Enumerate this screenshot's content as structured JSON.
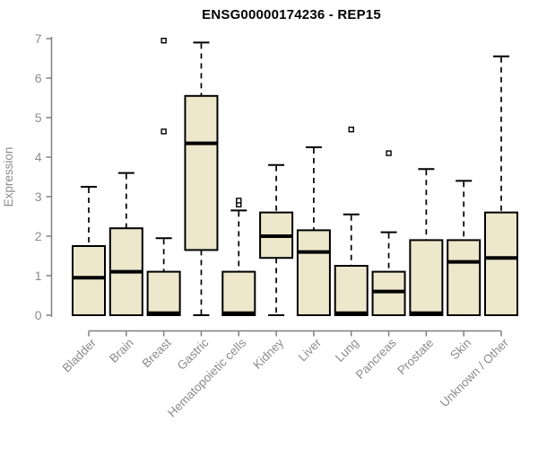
{
  "chart_data": {
    "type": "boxplot",
    "title": "ENSG00000174236 - REP15",
    "ylabel": "Expression",
    "xlabel": "",
    "ylim": [
      0,
      7
    ],
    "yticks": [
      0,
      1,
      2,
      3,
      4,
      5,
      6,
      7
    ],
    "grid": false,
    "legend": "none",
    "categories": [
      "Bladder",
      "Brain",
      "Breast",
      "Gastric",
      "Hematopoietic cells",
      "Kidney",
      "Liver",
      "Lung",
      "Pancreas",
      "Prostate",
      "Skin",
      "Unknown / Other"
    ],
    "series": [
      {
        "category": "Bladder",
        "whisker_low": 0,
        "q1": 0,
        "median": 0.95,
        "q3": 1.75,
        "whisker_high": 3.25,
        "outliers": []
      },
      {
        "category": "Brain",
        "whisker_low": 0,
        "q1": 0,
        "median": 1.1,
        "q3": 2.2,
        "whisker_high": 3.6,
        "outliers": []
      },
      {
        "category": "Breast",
        "whisker_low": 0,
        "q1": 0,
        "median": 0.05,
        "q3": 1.1,
        "whisker_high": 1.95,
        "outliers": [
          4.65,
          6.95
        ]
      },
      {
        "category": "Gastric",
        "whisker_low": 0,
        "q1": 1.65,
        "median": 4.35,
        "q3": 5.55,
        "whisker_high": 6.9,
        "outliers": []
      },
      {
        "category": "Hematopoietic cells",
        "whisker_low": 0,
        "q1": 0,
        "median": 0.05,
        "q3": 1.1,
        "whisker_high": 2.65,
        "outliers": [
          2.8,
          2.9
        ]
      },
      {
        "category": "Kidney",
        "whisker_low": 0,
        "q1": 1.45,
        "median": 2.0,
        "q3": 2.6,
        "whisker_high": 3.8,
        "outliers": []
      },
      {
        "category": "Liver",
        "whisker_low": 0,
        "q1": 0,
        "median": 1.6,
        "q3": 2.15,
        "whisker_high": 4.25,
        "outliers": []
      },
      {
        "category": "Lung",
        "whisker_low": 0,
        "q1": 0,
        "median": 0.05,
        "q3": 1.25,
        "whisker_high": 2.55,
        "outliers": [
          4.7
        ]
      },
      {
        "category": "Pancreas",
        "whisker_low": 0,
        "q1": 0,
        "median": 0.6,
        "q3": 1.1,
        "whisker_high": 2.1,
        "outliers": [
          4.1
        ]
      },
      {
        "category": "Prostate",
        "whisker_low": 0,
        "q1": 0,
        "median": 0.05,
        "q3": 1.9,
        "whisker_high": 3.7,
        "outliers": []
      },
      {
        "category": "Skin",
        "whisker_low": 0,
        "q1": 0,
        "median": 1.35,
        "q3": 1.9,
        "whisker_high": 3.4,
        "outliers": []
      },
      {
        "category": "Unknown / Other",
        "whisker_low": 0,
        "q1": 0,
        "median": 1.45,
        "q3": 2.6,
        "whisker_high": 6.55,
        "outliers": []
      }
    ],
    "colors": {
      "box_fill": "#EDE7CB",
      "box_border": "#000000",
      "median": "#000000",
      "whisker": "#000000",
      "outlier_stroke": "#000000",
      "outlier_fill": "#FFFFFF",
      "axis": "#808080",
      "tick_label": "#8C8C8C",
      "title": "#000000",
      "background": "#FFFFFF"
    }
  }
}
